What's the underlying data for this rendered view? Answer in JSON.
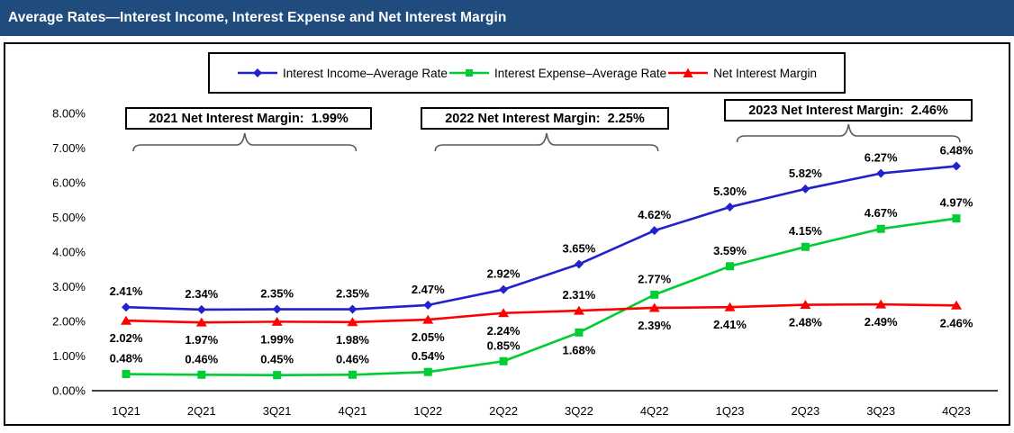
{
  "header": {
    "title": "Average Rates—Interest Income, Interest Expense and Net Interest Margin",
    "bg_color": "#1F4B7D"
  },
  "annotations": [
    {
      "year": "2021",
      "label": "2021 Net Interest Margin:  1.99%"
    },
    {
      "year": "2022",
      "label": "2022 Net Interest Margin:  2.25%"
    },
    {
      "year": "2023",
      "label": "2023 Net Interest Margin:  2.46%"
    }
  ],
  "chart_data": {
    "type": "line",
    "categories": [
      "1Q21",
      "2Q21",
      "3Q21",
      "4Q21",
      "1Q22",
      "2Q22",
      "3Q22",
      "4Q22",
      "1Q23",
      "2Q23",
      "3Q23",
      "4Q23"
    ],
    "series": [
      {
        "name": "Interest Income–Average Rate",
        "marker": "diamond",
        "color": "#2222CC",
        "values": [
          2.41,
          2.34,
          2.35,
          2.35,
          2.47,
          2.92,
          3.65,
          4.62,
          5.3,
          5.82,
          6.27,
          6.48
        ]
      },
      {
        "name": "Interest Expense–Average Rate",
        "marker": "square",
        "color": "#00CC33",
        "values": [
          0.48,
          0.46,
          0.45,
          0.46,
          0.54,
          0.85,
          1.68,
          2.77,
          3.59,
          4.15,
          4.67,
          4.97
        ]
      },
      {
        "name": "Net Interest Margin",
        "marker": "triangle",
        "color": "#FF0000",
        "values": [
          2.02,
          1.97,
          1.99,
          1.98,
          2.05,
          2.24,
          2.31,
          2.39,
          2.41,
          2.48,
          2.49,
          2.46
        ]
      }
    ],
    "y_ticks": [
      "0.00%",
      "1.00%",
      "2.00%",
      "3.00%",
      "4.00%",
      "5.00%",
      "6.00%",
      "7.00%",
      "8.00%"
    ],
    "ylim": [
      0,
      8
    ],
    "grid": false,
    "legend_position": "top",
    "brace_color": "#595959",
    "data_labels": true
  }
}
